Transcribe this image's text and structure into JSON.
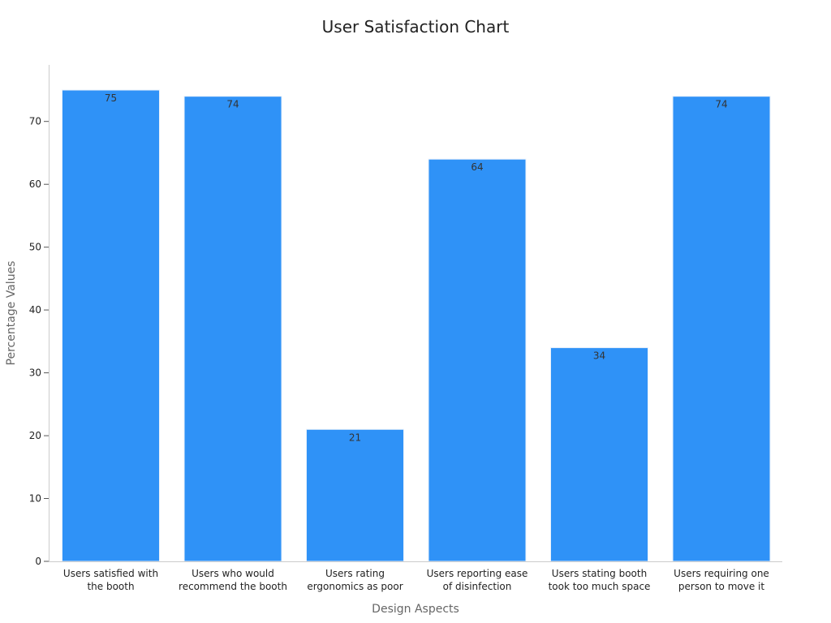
{
  "chart_data": {
    "type": "bar",
    "title": "User Satisfaction Chart",
    "xlabel": "Design Aspects",
    "ylabel": "Percentage Values",
    "categories": [
      [
        "Users satisfied with",
        "the booth"
      ],
      [
        "Users who would",
        "recommend the booth"
      ],
      [
        "Users rating",
        "ergonomics as poor"
      ],
      [
        "Users reporting ease",
        "of disinfection"
      ],
      [
        "Users stating booth",
        "took too much space"
      ],
      [
        "Users requiring one",
        "person to move it"
      ]
    ],
    "values": [
      75,
      74,
      21,
      64,
      34,
      74
    ],
    "data_labels": [
      "75",
      "74",
      "21",
      "64",
      "34",
      "74"
    ],
    "ylim": [
      0,
      79
    ],
    "yticks": [
      0,
      10,
      20,
      30,
      40,
      50,
      60,
      70
    ],
    "grid": false,
    "legend": "none",
    "colors": {
      "bar": "#2f92f7",
      "bar_edge": "#e8f1fb",
      "axis": "#cccccc",
      "tick": "#555555"
    }
  }
}
